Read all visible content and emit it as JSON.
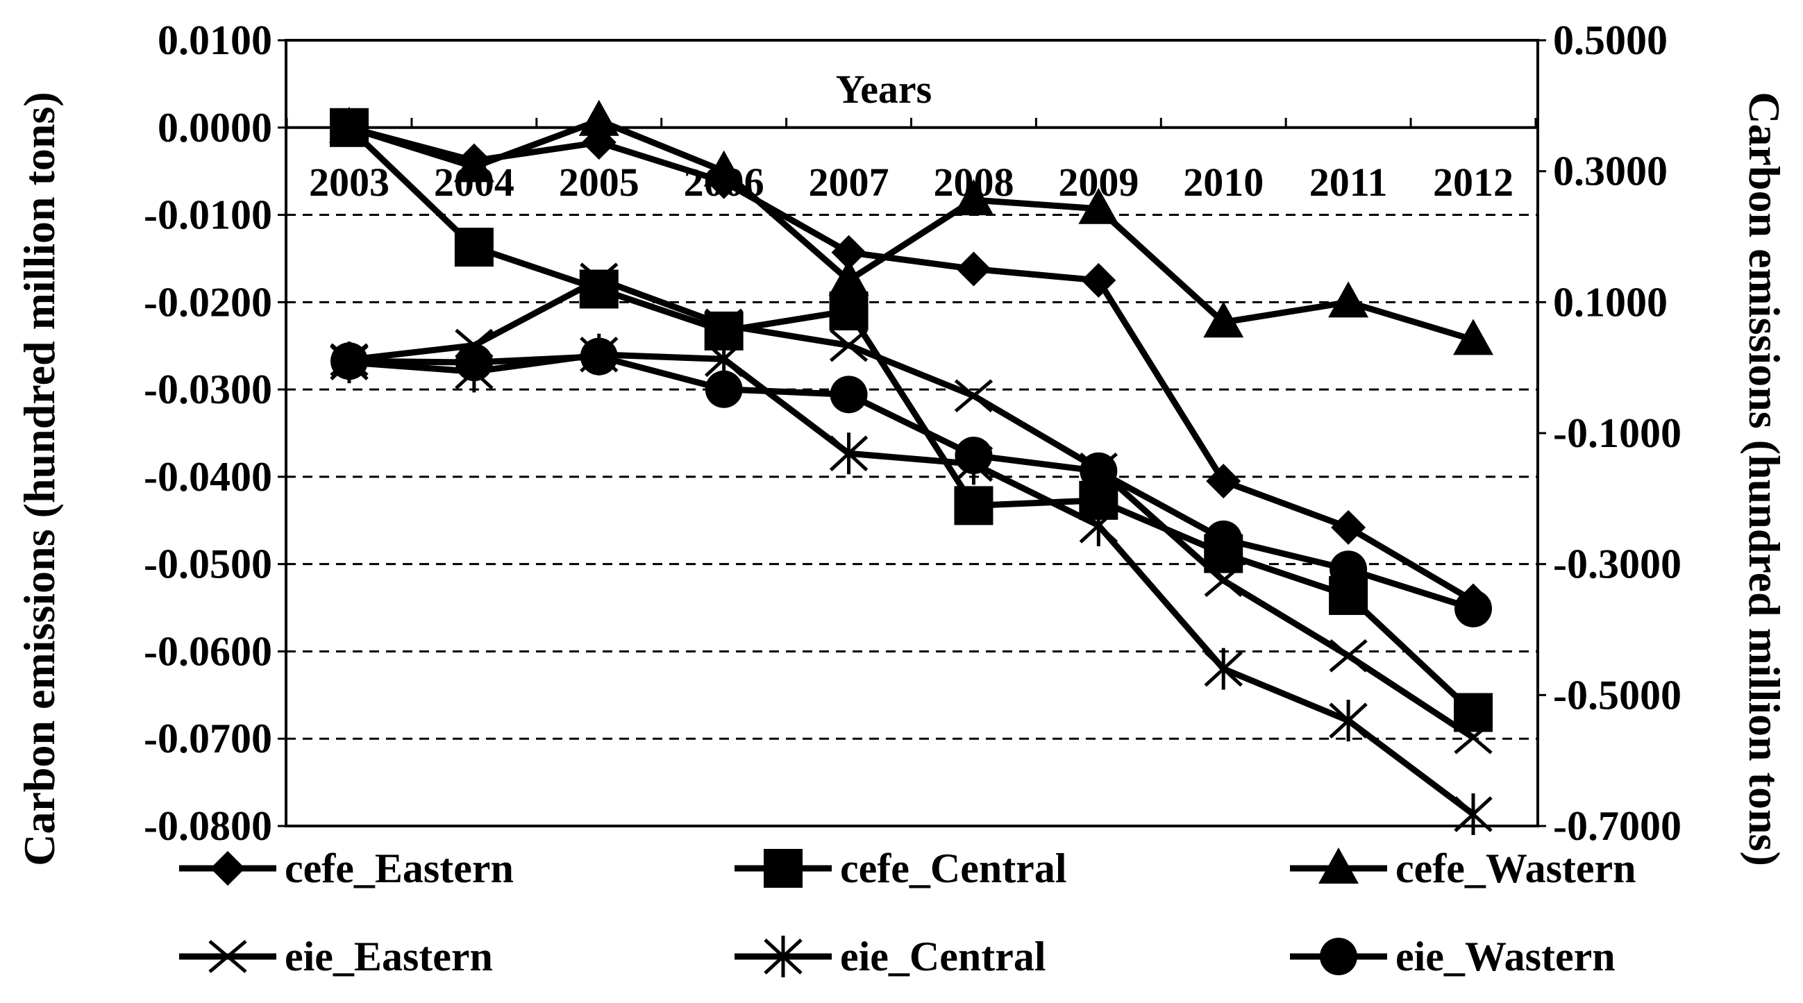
{
  "chart_data": {
    "type": "line",
    "xlabel": "Years",
    "ylabel_left": "Carbon emissions (hundred million tons)",
    "ylabel_right": "Carbon emissions (hundred million tons)",
    "categories": [
      "2003",
      "2004",
      "2005",
      "2006",
      "2007",
      "2008",
      "2009",
      "2010",
      "2011",
      "2012"
    ],
    "ylim_left": [
      -0.08,
      0.01
    ],
    "yticks_left": [
      "0.0100",
      "0.0000",
      "-0.0100",
      "-0.0200",
      "-0.0300",
      "-0.0400",
      "-0.0500",
      "-0.0600",
      "-0.0700",
      "-0.0800"
    ],
    "ylim_right": [
      -0.7,
      0.5
    ],
    "yticks_right": [
      "0.5000",
      "0.3000",
      "0.1000",
      "-0.1000",
      "-0.3000",
      "-0.5000",
      "-0.7000"
    ],
    "grid": "horizontal dashed",
    "legend_placement": "bottom",
    "series": [
      {
        "name": "cefe_Eastern",
        "marker": "diamond",
        "axis": "left",
        "values": [
          0.0,
          -0.0038,
          -0.0017,
          -0.0062,
          -0.0143,
          -0.0162,
          -0.0175,
          -0.0405,
          -0.0458,
          -0.0542
        ]
      },
      {
        "name": "cefe_Central",
        "marker": "square",
        "axis": "left",
        "values": [
          0.0,
          -0.0137,
          -0.0185,
          -0.0233,
          -0.021,
          -0.0433,
          -0.0427,
          -0.0488,
          -0.0536,
          -0.067
        ]
      },
      {
        "name": "cefe_Wastern",
        "marker": "triangle",
        "axis": "left",
        "values": [
          0.0,
          -0.0045,
          0.0008,
          -0.005,
          -0.0175,
          -0.0083,
          -0.0093,
          -0.0223,
          -0.02,
          -0.0243
        ]
      },
      {
        "name": "eie_Eastern",
        "marker": "x",
        "axis": "right",
        "values": [
          0.012,
          0.034,
          0.135,
          0.065,
          0.034,
          -0.043,
          -0.155,
          -0.325,
          -0.44,
          -0.565
        ]
      },
      {
        "name": "eie_Central",
        "marker": "asterisk",
        "axis": "right",
        "values": [
          0.008,
          -0.006,
          0.02,
          0.013,
          -0.131,
          -0.147,
          -0.241,
          -0.46,
          -0.539,
          -0.682
        ]
      },
      {
        "name": "eie_Wastern",
        "marker": "circle",
        "axis": "right",
        "values": [
          0.01,
          0.008,
          0.017,
          -0.033,
          -0.041,
          -0.134,
          -0.158,
          -0.262,
          -0.308,
          -0.368
        ]
      }
    ]
  }
}
